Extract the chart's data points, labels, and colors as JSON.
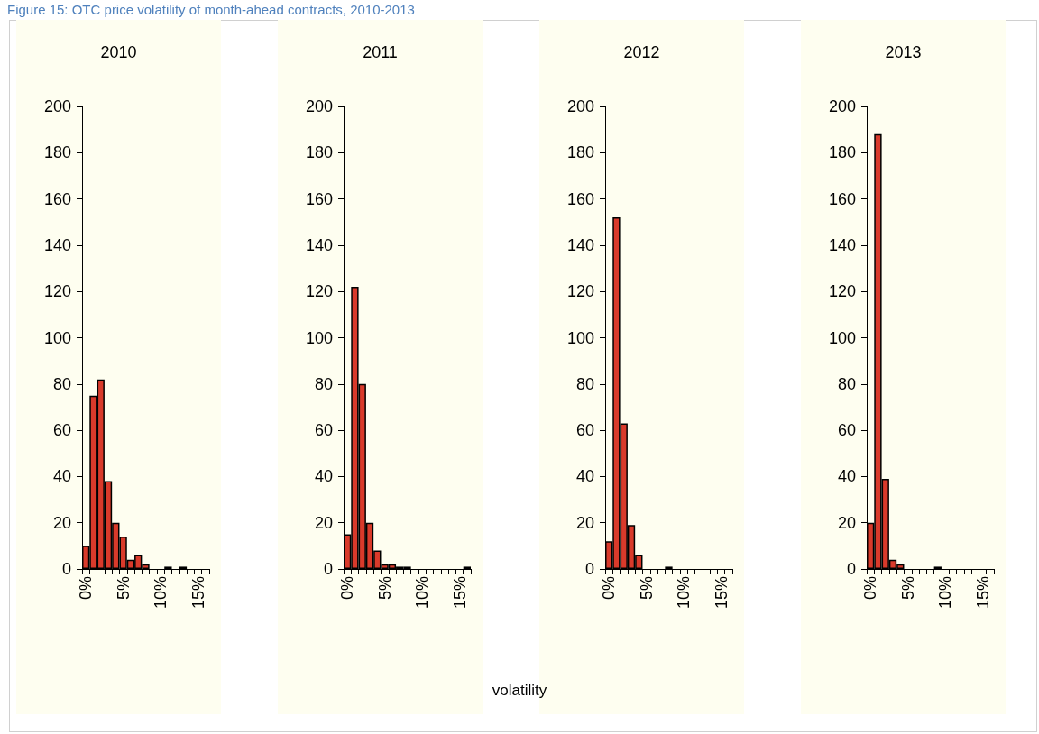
{
  "chart_data": [
    {
      "type": "bar",
      "title": "2010",
      "annotations": [
        "Figure 15: OTC price volatility of month-ahead contracts, 2010-2013"
      ],
      "categories": [
        "0%",
        null,
        null,
        null,
        null,
        "5%",
        null,
        null,
        null,
        null,
        "10%",
        null,
        null,
        null,
        null,
        "15%",
        null
      ],
      "values": [
        10,
        75,
        82,
        38,
        20,
        14,
        4,
        6,
        2,
        0,
        0,
        1,
        0,
        1,
        0,
        0,
        0
      ],
      "color": "#d93a2b",
      "ylim": [
        0,
        200
      ],
      "yticks": [
        0,
        20,
        40,
        60,
        80,
        100,
        120,
        140,
        160,
        180,
        200
      ],
      "grid": false
    },
    {
      "type": "bar",
      "title": "2011",
      "xlabel": "volatility",
      "categories": [
        "0%",
        null,
        null,
        null,
        null,
        "5%",
        null,
        null,
        null,
        null,
        "10%",
        null,
        null,
        null,
        null,
        "15%",
        null
      ],
      "values": [
        15,
        122,
        80,
        20,
        8,
        2,
        2,
        1,
        1,
        0,
        0,
        0,
        0,
        0,
        0,
        0,
        1
      ],
      "color": "#d93a2b",
      "ylim": [
        0,
        200
      ],
      "yticks": [
        0,
        20,
        40,
        60,
        80,
        100,
        120,
        140,
        160,
        180,
        200
      ],
      "grid": false
    },
    {
      "type": "bar",
      "title": "2012",
      "categories": [
        "0%",
        null,
        null,
        null,
        null,
        "5%",
        null,
        null,
        null,
        null,
        "10%",
        null,
        null,
        null,
        null,
        "15%",
        null
      ],
      "values": [
        12,
        152,
        63,
        19,
        6,
        0,
        0,
        0,
        1,
        0,
        0,
        0,
        0,
        0,
        0,
        0,
        0
      ],
      "color": "#d93a2b",
      "ylim": [
        0,
        200
      ],
      "yticks": [
        0,
        20,
        40,
        60,
        80,
        100,
        120,
        140,
        160,
        180,
        200
      ],
      "grid": false
    },
    {
      "type": "bar",
      "title": "2013",
      "categories": [
        "0%",
        null,
        null,
        null,
        null,
        "5%",
        null,
        null,
        null,
        null,
        "10%",
        null,
        null,
        null,
        null,
        "15%",
        null
      ],
      "values": [
        20,
        188,
        39,
        4,
        2,
        0,
        0,
        0,
        0,
        1,
        0,
        0,
        0,
        0,
        0,
        0,
        0
      ],
      "color": "#d93a2b",
      "ylim": [
        0,
        200
      ],
      "yticks": [
        0,
        20,
        40,
        60,
        80,
        100,
        120,
        140,
        160,
        180,
        200
      ],
      "grid": false
    }
  ]
}
